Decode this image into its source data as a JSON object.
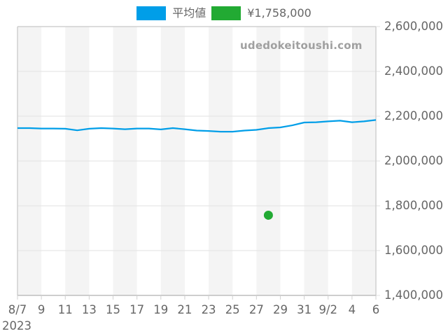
{
  "legend": {
    "items": [
      {
        "label": "平均値",
        "color": "#009ee8"
      },
      {
        "label": "¥1,758,000",
        "color": "#22aa33"
      }
    ]
  },
  "watermark": "udedokeitoushi.com",
  "x_year_label": "2023",
  "chart_data": {
    "type": "line",
    "title": "",
    "xlabel": "",
    "ylabel": "",
    "ylim": [
      1400000,
      2600000
    ],
    "yticks": [
      "2,600,000",
      "2,400,000",
      "2,200,000",
      "2,000,000",
      "1,800,000",
      "1,600,000",
      "1,400,000"
    ],
    "ytick_values": [
      2600000,
      2400000,
      2200000,
      2000000,
      1800000,
      1600000,
      1400000
    ],
    "xticks": [
      "8/7",
      "9",
      "11",
      "13",
      "15",
      "17",
      "19",
      "21",
      "23",
      "25",
      "27",
      "29",
      "31",
      "9/2",
      "4",
      "6"
    ],
    "xtick_year": "2023",
    "x": [
      "2023-08-07",
      "2023-08-08",
      "2023-08-09",
      "2023-08-10",
      "2023-08-11",
      "2023-08-12",
      "2023-08-13",
      "2023-08-14",
      "2023-08-15",
      "2023-08-16",
      "2023-08-17",
      "2023-08-18",
      "2023-08-19",
      "2023-08-20",
      "2023-08-21",
      "2023-08-22",
      "2023-08-23",
      "2023-08-24",
      "2023-08-25",
      "2023-08-26",
      "2023-08-27",
      "2023-08-28",
      "2023-08-29",
      "2023-08-30",
      "2023-08-31",
      "2023-09-01",
      "2023-09-02",
      "2023-09-03",
      "2023-09-04",
      "2023-09-05",
      "2023-09-06"
    ],
    "series": [
      {
        "name": "平均値",
        "type": "line",
        "color": "#009ee8",
        "values": [
          2147000,
          2147000,
          2145000,
          2145000,
          2144000,
          2137000,
          2144000,
          2147000,
          2145000,
          2142000,
          2145000,
          2145000,
          2141000,
          2147000,
          2142000,
          2136000,
          2134000,
          2131000,
          2131000,
          2136000,
          2139000,
          2147000,
          2150000,
          2159000,
          2172000,
          2173000,
          2177000,
          2180000,
          2173000,
          2177000,
          2183000
        ]
      },
      {
        "name": "¥1,758,000",
        "type": "scatter",
        "color": "#22aa33",
        "points": [
          {
            "x": "2023-08-28",
            "y": 1758000
          }
        ]
      }
    ],
    "grid": true,
    "legend_position": "top",
    "alternating_bands": true
  }
}
